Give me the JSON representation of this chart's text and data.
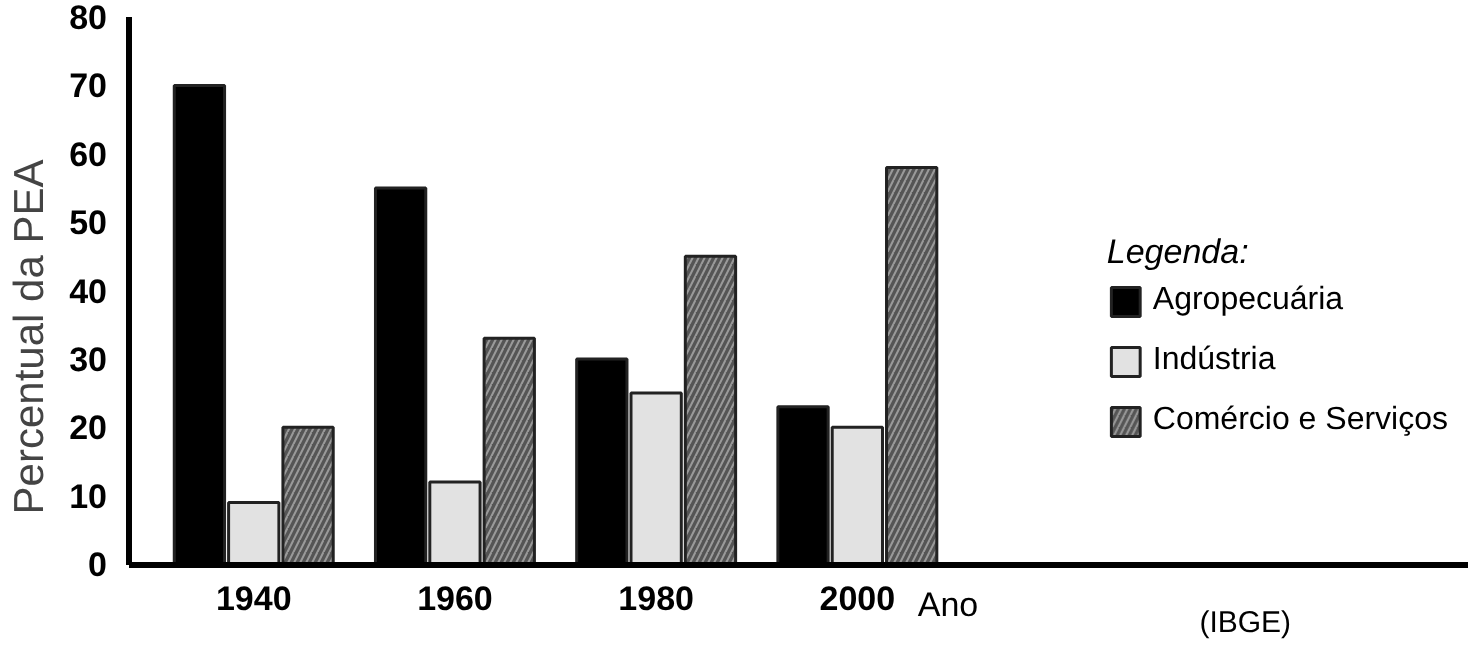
{
  "chart_data": {
    "type": "bar",
    "categories": [
      "1940",
      "1960",
      "1980",
      "2000"
    ],
    "xlabel": "Ano",
    "ylabel": "Percentual da PEA",
    "legend_title": "Legenda:",
    "legend": "right",
    "ylim": [
      0,
      80
    ],
    "yticks": [
      0,
      10,
      20,
      30,
      40,
      50,
      60,
      70,
      80
    ],
    "grid": false,
    "annotations": [
      "(IBGE)"
    ],
    "series": [
      {
        "name": "Agropecuária",
        "color": "#000000",
        "values": [
          70,
          55,
          30,
          23
        ]
      },
      {
        "name": "Indústria",
        "color": "#e2e2e2",
        "values": [
          9,
          12,
          25,
          20
        ]
      },
      {
        "name": "Comércio e Serviços",
        "color": "#555555",
        "values": [
          20,
          33,
          45,
          58
        ]
      }
    ]
  }
}
